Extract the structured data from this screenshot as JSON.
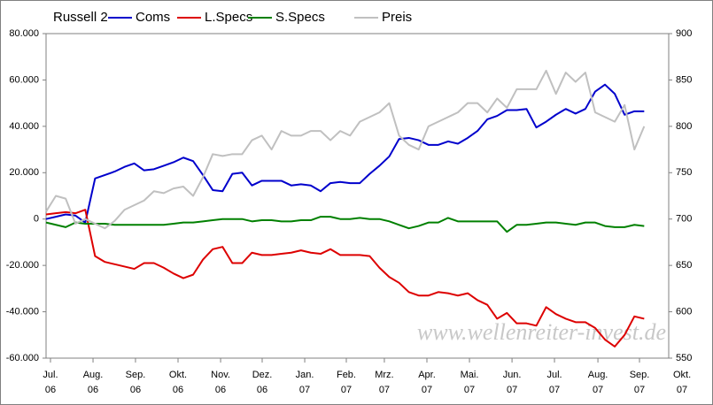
{
  "chart_data": {
    "type": "line",
    "title": "Russell 2",
    "watermark": "www.wellenreiter-invest.de",
    "x": [
      0,
      1,
      2,
      3,
      4,
      5,
      6,
      7,
      8,
      9,
      10,
      11,
      12,
      13,
      14,
      15,
      16,
      17,
      18,
      19,
      20,
      21,
      22,
      23,
      24,
      25,
      26,
      27,
      28,
      29,
      30,
      31,
      32,
      33,
      34,
      35,
      36,
      37,
      38,
      39,
      40,
      41,
      42,
      43,
      44,
      45,
      46,
      47,
      48,
      49,
      50,
      51,
      52,
      53,
      54,
      55,
      56,
      57,
      58,
      59,
      60,
      61
    ],
    "xlim": [
      0,
      63.5
    ],
    "xticks": [
      {
        "value": 0.45,
        "label": [
          "Jul.",
          "06"
        ]
      },
      {
        "value": 4.79,
        "label": [
          "Aug.",
          "06"
        ]
      },
      {
        "value": 9.12,
        "label": [
          "Sep.",
          "06"
        ]
      },
      {
        "value": 13.46,
        "label": [
          "Okt.",
          "06"
        ]
      },
      {
        "value": 17.8,
        "label": [
          "Nov.",
          "06"
        ]
      },
      {
        "value": 22.04,
        "label": [
          "Dez.",
          "06"
        ]
      },
      {
        "value": 26.38,
        "label": [
          "Jan.",
          "07"
        ]
      },
      {
        "value": 30.62,
        "label": [
          "Feb.",
          "07"
        ]
      },
      {
        "value": 34.5,
        "label": [
          "Mrz.",
          "07"
        ]
      },
      {
        "value": 38.84,
        "label": [
          "Apr.",
          "07"
        ]
      },
      {
        "value": 43.18,
        "label": [
          "Mai.",
          "07"
        ]
      },
      {
        "value": 47.52,
        "label": [
          "Jun.",
          "07"
        ]
      },
      {
        "value": 51.85,
        "label": [
          "Jul.",
          "07"
        ]
      },
      {
        "value": 56.28,
        "label": [
          "Aug.",
          "07"
        ]
      },
      {
        "value": 60.52,
        "label": [
          "Sep.",
          "07"
        ]
      },
      {
        "value": 64.86,
        "label": [
          "Okt.",
          "07"
        ]
      }
    ],
    "ylim": [
      -60000,
      80000
    ],
    "yticks": [
      {
        "value": 80000,
        "label": "80.000"
      },
      {
        "value": 60000,
        "label": "60.000"
      },
      {
        "value": 40000,
        "label": "40.000"
      },
      {
        "value": 20000,
        "label": "20.000"
      },
      0,
      {
        "value": -20000,
        "label": "-20.000"
      },
      {
        "value": -40000,
        "label": "-40.000"
      },
      {
        "value": -60000,
        "label": "-60.000"
      }
    ],
    "y2lim": [
      550,
      900
    ],
    "y2ticks": [
      900,
      850,
      800,
      750,
      700,
      650,
      600,
      550
    ],
    "grid": false,
    "legend": "top",
    "series": [
      {
        "name": "Coms",
        "color": "#0000cc",
        "values": [
          0,
          1000,
          2000,
          1500,
          -1500,
          17500,
          19000,
          20500,
          22500,
          24000,
          21000,
          21500,
          23000,
          24500,
          26500,
          25000,
          19000,
          12500,
          12000,
          19500,
          20000,
          14500,
          16500,
          16500,
          16500,
          14500,
          15000,
          14500,
          12000,
          15500,
          16000,
          15500,
          15500,
          19500,
          23000,
          27000,
          34500,
          35000,
          34000,
          32000,
          32000,
          33500,
          32500,
          35000,
          38000,
          43000,
          44500,
          47000,
          47000,
          47500,
          39500,
          42000,
          45000,
          47500,
          45500,
          47500,
          55000,
          58000,
          54000,
          45000,
          46500,
          46500
        ]
      },
      {
        "name": "L.Specs",
        "color": "#dd0000",
        "values": [
          2000,
          2500,
          3000,
          2500,
          4000,
          -16000,
          -18500,
          -19500,
          -20500,
          -21500,
          -19000,
          -19000,
          -21000,
          -23500,
          -25500,
          -24000,
          -17500,
          -13000,
          -12000,
          -19000,
          -19000,
          -14500,
          -15500,
          -15500,
          -15000,
          -14500,
          -13500,
          -14500,
          -15000,
          -13000,
          -15500,
          -15500,
          -15500,
          -16000,
          -21000,
          -25000,
          -27500,
          -31500,
          -33000,
          -33000,
          -31500,
          -32000,
          -33000,
          -32000,
          -35000,
          -37000,
          -43000,
          -40500,
          -45000,
          -45000,
          -46000,
          -38000,
          -41000,
          -43000,
          -44500,
          -44500,
          -47000,
          -52000,
          -55000,
          -50000,
          -42000,
          -43000
        ]
      },
      {
        "name": "S.Specs",
        "color": "#008000",
        "values": [
          -1500,
          -2500,
          -3500,
          -1500,
          -2000,
          -2000,
          -2000,
          -2500,
          -2500,
          -2500,
          -2500,
          -2500,
          -2500,
          -2000,
          -1500,
          -1500,
          -1000,
          -500,
          0,
          0,
          0,
          -1000,
          -500,
          -500,
          -1000,
          -1000,
          -500,
          -500,
          1000,
          1000,
          0,
          0,
          500,
          0,
          0,
          -1000,
          -2500,
          -4000,
          -3000,
          -1500,
          -1500,
          500,
          -1000,
          -1000,
          -1000,
          -1000,
          -1000,
          -5500,
          -2500,
          -2500,
          -2000,
          -1500,
          -1500,
          -2000,
          -2500,
          -1500,
          -1500,
          -3000,
          -3500,
          -3500,
          -2500,
          -3000
        ]
      },
      {
        "name": "Preis",
        "color": "#c0c0c0",
        "axis": "y2",
        "values": [
          708,
          725,
          722,
          695,
          700,
          695,
          690,
          698,
          710,
          715,
          720,
          730,
          728,
          733,
          735,
          725,
          745,
          770,
          768,
          770,
          770,
          785,
          790,
          775,
          795,
          790,
          790,
          795,
          795,
          785,
          795,
          790,
          805,
          810,
          815,
          825,
          790,
          780,
          775,
          800,
          805,
          810,
          815,
          825,
          825,
          815,
          830,
          820,
          840,
          840,
          840,
          860,
          835,
          858,
          848,
          858,
          815,
          810,
          805,
          823,
          775,
          800
        ]
      }
    ]
  }
}
